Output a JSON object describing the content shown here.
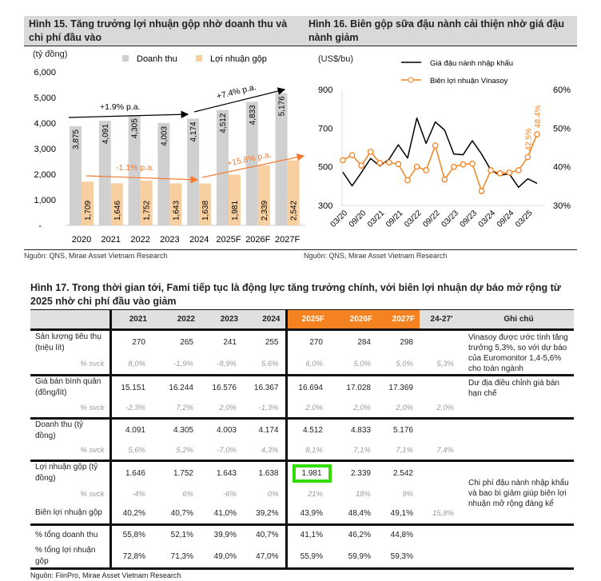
{
  "fig15": {
    "title": "Hình 15. Tăng trưởng lợi nhuận gộp nhờ doanh thu và chi phí đầu vào",
    "unit": "(tỷ đồng)",
    "source": "Nguồn: QNS, Mirae Asset Vietnam Research"
  },
  "fig16": {
    "title": "Hình 16. Biên gộp sữa đậu nành cải thiện nhờ giá đậu nành giảm",
    "unit": "(US$/bu)",
    "source": "Nguồn: QNS, Mirae Asset Vietnam Research"
  },
  "chart_data": [
    {
      "type": "bar",
      "categories": [
        "2020",
        "2021",
        "2022",
        "2023",
        "2024",
        "2025F",
        "2026F",
        "2027F"
      ],
      "series": [
        {
          "name": "Doanh thu",
          "color": "#d0d0d0",
          "values": [
            3875,
            4091,
            4305,
            4003,
            4174,
            4512,
            4833,
            5176
          ],
          "labels": [
            "3,875",
            "4,091",
            "4,305",
            "4,003",
            "4,174",
            "4,512",
            "4,833",
            "5,176"
          ]
        },
        {
          "name": "Lợi nhuận gộp",
          "color": "#f8cfa0",
          "values": [
            1709,
            1646,
            1752,
            1643,
            1638,
            1981,
            2339,
            2542
          ],
          "labels": [
            "1,709",
            "1,646",
            "1,752",
            "1,643",
            "1,638",
            "1,981",
            "2,339",
            "2,542"
          ]
        }
      ],
      "ylim": [
        0,
        6000
      ],
      "yticks": [
        "-",
        "1,000",
        "2,000",
        "3,000",
        "4,000",
        "5,000",
        "6,000"
      ],
      "annotations": [
        "+1.9% p.a.",
        "+7.4% p.a.",
        "-1.1% p.a.",
        "+15.8% p.a."
      ]
    },
    {
      "type": "line",
      "x_labels": [
        "03/20",
        "09/20",
        "03/21",
        "09/21",
        "03/22",
        "09/22",
        "03/23",
        "09/23",
        "03/24",
        "09/24",
        "03/25"
      ],
      "series": [
        {
          "name": "Giá đậu nành nhập khẩu",
          "axis": "left",
          "color": "#000000",
          "values": [
            472,
            401,
            470,
            543,
            504,
            539,
            614,
            545,
            752,
            621,
            732,
            690,
            566,
            562,
            635,
            566,
            483,
            456,
            463,
            394,
            438,
            414
          ]
        },
        {
          "name": "Biên lợi nhuận Vinasoy",
          "axis": "right",
          "color": "#f58220",
          "values": [
            41.7,
            43.0,
            40.3,
            43.9,
            41.0,
            41.1,
            40.7,
            36.5,
            40.0,
            39.1,
            45.5,
            36.7,
            40.0,
            40.6,
            40.8,
            33.7,
            39.1,
            38.3,
            38.5,
            39.1,
            42.5,
            48.4
          ]
        }
      ],
      "ylim_left": [
        300,
        900
      ],
      "yticks_left": [
        "300",
        "500",
        "700",
        "900"
      ],
      "ylim_right": [
        30,
        60
      ],
      "yticks_right": [
        "30%",
        "40%",
        "50%",
        "60%"
      ],
      "data_labels": [
        "42.5%",
        "48.4%"
      ]
    }
  ],
  "table": {
    "title": "Hình 17. Trong thời gian tới, Fami tiếp tục là động lực tăng trưởng chính, với biên lợi nhuận dự báo mở rộng từ 2025 nhờ chi phí đầu vào giảm",
    "headers": [
      "",
      "2021",
      "2022",
      "2023",
      "2024",
      "2025F",
      "2026F",
      "2027F",
      "24-27'",
      "Ghi chú"
    ],
    "groups": [
      {
        "rows": [
          {
            "label": "Sản lượng tiêu thụ (triệu lít)",
            "vals": [
              "270",
              "265",
              "241",
              "255",
              "270",
              "284",
              "298",
              ""
            ]
          },
          {
            "label": "% svck",
            "sub": true,
            "vals": [
              "8,0%",
              "-1,9%",
              "-8,9%",
              "5,6%",
              "6,0%",
              "5,0%",
              "5,0%",
              "5,3%"
            ]
          }
        ],
        "note": "Vinasoy được ước tính tăng trưởng 5,3%, so với dự báo của Euromonitor 1,4-5,6% cho toàn ngành"
      },
      {
        "rows": [
          {
            "label": "Giá bán bình quân (đồng/lít)",
            "vals": [
              "15.151",
              "16.244",
              "16.576",
              "16.367",
              "16.694",
              "17.028",
              "17.369",
              ""
            ]
          },
          {
            "label": "% svck",
            "sub": true,
            "vals": [
              "-2,3%",
              "7,2%",
              "2,0%",
              "-1,3%",
              "2,0%",
              "2,0%",
              "2,0%",
              "2,0%"
            ]
          }
        ],
        "note": "Dư địa điều chỉnh giá bán hạn chế"
      },
      {
        "rows": [
          {
            "label": "Doanh thu (tỷ đồng)",
            "vals": [
              "4.091",
              "4.305",
              "4.003",
              "4.174",
              "4.512",
              "4.833",
              "5.176",
              ""
            ]
          },
          {
            "label": "% svck",
            "sub": true,
            "vals": [
              "5,6%",
              "5,2%",
              "-7,0%",
              "4,3%",
              "8,1%",
              "7,1%",
              "7,1%",
              "7,4%"
            ]
          }
        ],
        "note": ""
      },
      {
        "rows": [
          {
            "label": "Lợi nhuận gộp (tỷ đồng)",
            "vals": [
              "1.646",
              "1.752",
              "1.643",
              "1.638",
              "1.981",
              "2.339",
              "2.542",
              ""
            ]
          },
          {
            "label": "% svck",
            "sub": true,
            "vals": [
              "-4%",
              "6%",
              "-6%",
              "0%",
              "21%",
              "18%",
              "9%",
              ""
            ]
          },
          {
            "label": "Biên lợi nhuận gộp",
            "vals": [
              "40,2%",
              "40,7%",
              "41,0%",
              "39,2%",
              "43,9%",
              "48,4%",
              "49,1%",
              "15,8%"
            ]
          }
        ],
        "note": "Chi phí đậu nành nhập khẩu và bao bì giảm giúp biên lợi nhuận mở rộng đáng kể"
      },
      {
        "rows": [
          {
            "label": "% tổng doanh thu",
            "vals": [
              "55,8%",
              "52,1%",
              "39,9%",
              "40,7%",
              "41,1%",
              "46,2%",
              "44,8%",
              ""
            ]
          },
          {
            "label": "% tổng lợi nhuận gộp",
            "vals": [
              "72,8%",
              "71,3%",
              "49,0%",
              "47,0%",
              "55,9%",
              "59,9%",
              "59,3%",
              ""
            ]
          }
        ],
        "note": ""
      }
    ],
    "source": "Nguồn: FiinPro, Mirae Asset Vietnam Research",
    "highlight": "1.981"
  }
}
